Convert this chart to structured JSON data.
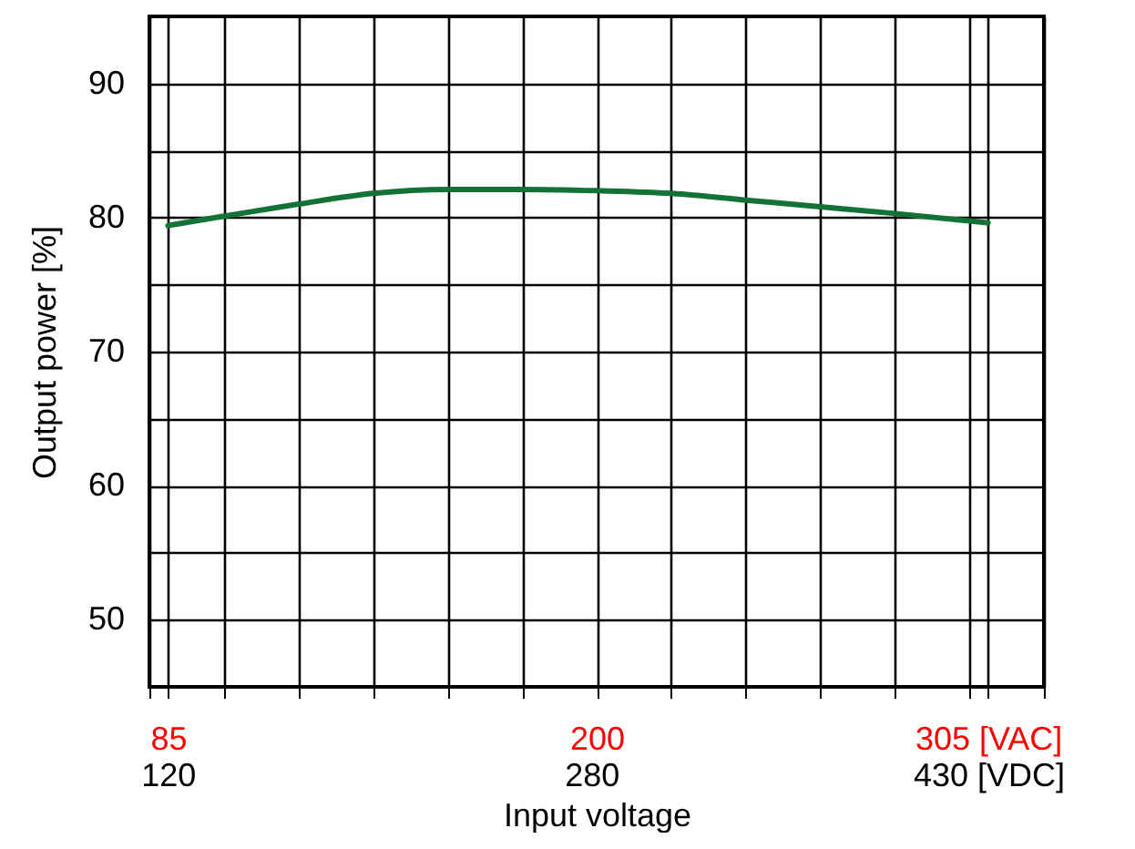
{
  "chart_data": {
    "type": "line",
    "xlabel": "Input voltage",
    "ylabel": "Output power [%]",
    "x": [
      85,
      100,
      120,
      140,
      160,
      180,
      200,
      220,
      240,
      260,
      280,
      305
    ],
    "series": [
      {
        "color": "#137236",
        "values": [
          79.4,
          80.1,
          81.0,
          81.8,
          82.1,
          82.1,
          82.0,
          81.8,
          81.3,
          80.8,
          80.3,
          79.6
        ]
      }
    ],
    "xlim": [
      80,
      320
    ],
    "xticks": [
      {
        "value": 80,
        "label": null
      },
      {
        "value": 85,
        "label": "85"
      },
      {
        "value": 100,
        "label": null
      },
      {
        "value": 120,
        "label": null
      },
      {
        "value": 140,
        "label": null
      },
      {
        "value": 160,
        "label": null
      },
      {
        "value": 180,
        "label": null
      },
      {
        "value": 200,
        "label": "200"
      },
      {
        "value": 220,
        "label": null
      },
      {
        "value": 240,
        "label": null
      },
      {
        "value": 260,
        "label": null
      },
      {
        "value": 280,
        "label": null
      },
      {
        "value": 300,
        "label": null
      },
      {
        "value": 305,
        "label": "305 [VAC]"
      },
      {
        "value": 320,
        "label": null
      }
    ],
    "x2lim": [
      113,
      451
    ],
    "x2ticks": [
      120,
      280,
      {
        "value": 430,
        "label": "430 [VDC]"
      }
    ],
    "ylim": [
      45,
      95
    ],
    "yticks": [
      50,
      {
        "value": 55,
        "label": null
      },
      60,
      {
        "value": 65,
        "label": null
      },
      70,
      {
        "value": 75,
        "label": null
      },
      80,
      {
        "value": 85,
        "label": null
      },
      90
    ],
    "grid": true,
    "legend": false,
    "marker": "none",
    "line_style": "solid"
  }
}
